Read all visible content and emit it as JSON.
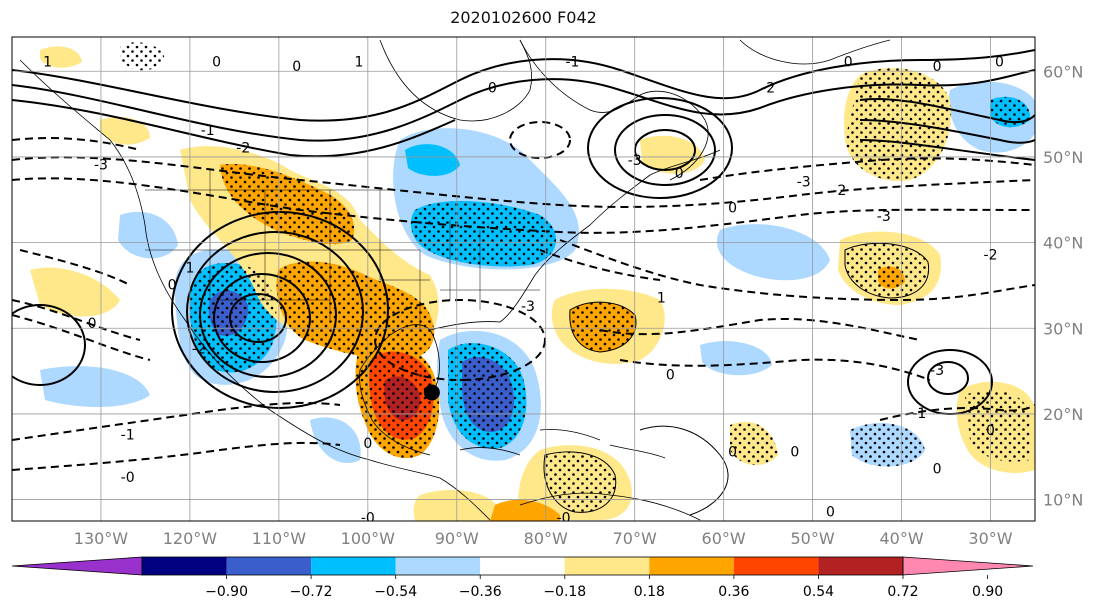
{
  "title": "2020102600 F042",
  "map": {
    "projection": "plate-carree",
    "lon_range": [
      -140,
      -25
    ],
    "lat_range": [
      7.5,
      64
    ],
    "lon_ticks": [
      {
        "lon": -130,
        "label": "130°W"
      },
      {
        "lon": -120,
        "label": "120°W"
      },
      {
        "lon": -110,
        "label": "110°W"
      },
      {
        "lon": -100,
        "label": "100°W"
      },
      {
        "lon": -90,
        "label": "90°W"
      },
      {
        "lon": -80,
        "label": "80°W"
      },
      {
        "lon": -70,
        "label": "70°W"
      },
      {
        "lon": -60,
        "label": "60°W"
      },
      {
        "lon": -50,
        "label": "50°W"
      },
      {
        "lon": -40,
        "label": "40°W"
      },
      {
        "lon": -30,
        "label": "30°W"
      }
    ],
    "lat_ticks": [
      {
        "lat": 60,
        "label": "60°N"
      },
      {
        "lat": 50,
        "label": "50°N"
      },
      {
        "lat": 40,
        "label": "40°N"
      },
      {
        "lat": 30,
        "label": "30°N"
      },
      {
        "lat": 20,
        "label": "20°N"
      },
      {
        "lat": 10,
        "label": "10°N"
      }
    ],
    "grid": true,
    "marker": {
      "lon": -92.8,
      "lat": 22.5,
      "color": "#000000"
    },
    "contour_labels": [
      {
        "text": "1",
        "lon": -136,
        "lat": 61
      },
      {
        "text": "0",
        "lon": -117,
        "lat": 61
      },
      {
        "text": "0",
        "lon": -108,
        "lat": 60.5
      },
      {
        "text": "1",
        "lon": -101,
        "lat": 61
      },
      {
        "text": "0",
        "lon": -86,
        "lat": 58
      },
      {
        "text": "-1",
        "lon": -77,
        "lat": 61
      },
      {
        "text": "-2",
        "lon": -55,
        "lat": 58
      },
      {
        "text": "0",
        "lon": -46,
        "lat": 61
      },
      {
        "text": "0",
        "lon": -36,
        "lat": 60.5
      },
      {
        "text": "0",
        "lon": -29,
        "lat": 61
      },
      {
        "text": "-1",
        "lon": -118,
        "lat": 53
      },
      {
        "text": "-2",
        "lon": -114,
        "lat": 51
      },
      {
        "text": "-3",
        "lon": -130,
        "lat": 49
      },
      {
        "text": "-3",
        "lon": -70,
        "lat": 49.5
      },
      {
        "text": "0",
        "lon": -65,
        "lat": 48
      },
      {
        "text": "-3",
        "lon": -51,
        "lat": 47
      },
      {
        "text": "-2",
        "lon": -47,
        "lat": 46
      },
      {
        "text": "0",
        "lon": -59,
        "lat": 44
      },
      {
        "text": "-3",
        "lon": -42,
        "lat": 43
      },
      {
        "text": "-2",
        "lon": -30,
        "lat": 38.5
      },
      {
        "text": "0",
        "lon": -122,
        "lat": 35
      },
      {
        "text": "0",
        "lon": -131,
        "lat": 30.5
      },
      {
        "text": "-2",
        "lon": -119,
        "lat": 27.5
      },
      {
        "text": "-3",
        "lon": -82,
        "lat": 32.5
      },
      {
        "text": "1",
        "lon": -67,
        "lat": 33.5
      },
      {
        "text": "0",
        "lon": -66,
        "lat": 24.5
      },
      {
        "text": "1",
        "lon": -120,
        "lat": 37
      },
      {
        "text": "-3",
        "lon": -36,
        "lat": 25
      },
      {
        "text": "-1",
        "lon": -38,
        "lat": 20
      },
      {
        "text": "0",
        "lon": -30,
        "lat": 18
      },
      {
        "text": "-1",
        "lon": -127,
        "lat": 17.5
      },
      {
        "text": "-0",
        "lon": -127,
        "lat": 12.5
      },
      {
        "text": "0",
        "lon": -59,
        "lat": 15.5
      },
      {
        "text": "0",
        "lon": -52,
        "lat": 15.5
      },
      {
        "text": "0",
        "lon": -36,
        "lat": 13.5
      },
      {
        "text": "0",
        "lon": -100,
        "lat": 16.5
      },
      {
        "text": "-0",
        "lon": -100,
        "lat": 7.8
      },
      {
        "text": "-0",
        "lon": -78,
        "lat": 7.8
      },
      {
        "text": "0",
        "lon": -48,
        "lat": 8.5
      }
    ]
  },
  "colorbar": {
    "colors": [
      "#9932cc",
      "#000080",
      "#3a5fcd",
      "#00bfff",
      "#add8ff",
      "#ffffff",
      "#ffe88a",
      "#ffa500",
      "#ff4500",
      "#b22222",
      "#ff88b0"
    ],
    "labels": [
      "−0.90",
      "−0.72",
      "−0.54",
      "−0.36",
      "−0.18",
      "0.18",
      "0.36",
      "0.54",
      "0.72",
      "0.90"
    ]
  }
}
